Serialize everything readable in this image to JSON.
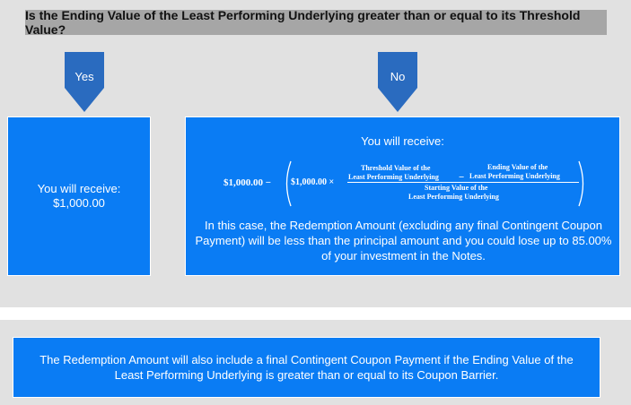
{
  "question": "Is the Ending Value of the Least Performing Underlying greater than or equal to its Threshold Value?",
  "yes": {
    "arrow_label": "Yes",
    "receive_label": "You will receive:",
    "amount": "$1,000.00"
  },
  "no": {
    "arrow_label": "No",
    "receive_label": "You will receive:",
    "formula": {
      "lead": "$1,000.00 −",
      "inner": "$1,000.00 ×",
      "threshold_line1": "Threshold Value of the",
      "threshold_line2": "Least Performing Underlying",
      "minus": "−",
      "ending_line1": "Ending Value of the",
      "ending_line2": "Least Performing Underlying",
      "starting_line1": "Starting Value of the",
      "starting_line2": "Least Performing Underlying"
    },
    "explanation": "In this case, the Redemption Amount (excluding any final Contingent Coupon Payment) will be less than the principal amount and you could lose up to 85.00% of your investment in the Notes."
  },
  "note": "The Redemption Amount will also include a final Contingent Coupon Payment if the Ending Value of the Least Performing Underlying is greater than or equal to its Coupon Barrier.",
  "colors": {
    "panel": "#e1e1e1",
    "question_bar": "#a6a6a6",
    "box_blue": "#0a7cf4",
    "arrow_blue": "#2a6bbf"
  }
}
